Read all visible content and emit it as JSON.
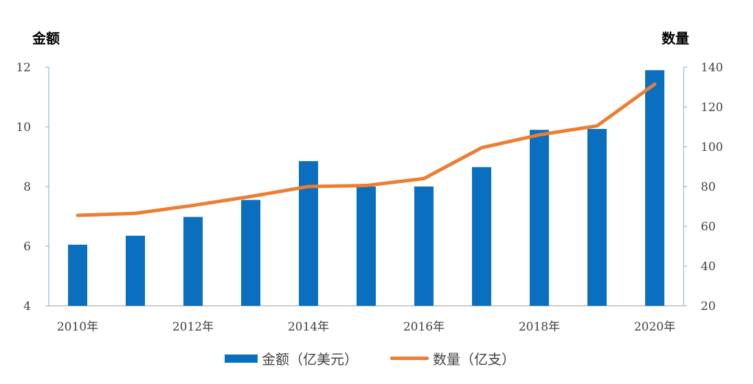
{
  "chart_data": {
    "type": "bar",
    "categories": [
      "2010",
      "2011",
      "2012",
      "2013",
      "2014",
      "2015",
      "2016",
      "2017",
      "2018",
      "2019",
      "2020"
    ],
    "x_tick_labels": [
      "2010年",
      "",
      "2012年",
      "",
      "2014年",
      "",
      "2016年",
      "",
      "2018年",
      "",
      "2020年"
    ],
    "series": [
      {
        "name": "金额（亿美元）",
        "type": "bar",
        "axis": "left",
        "color": "#0A6FBF",
        "values": [
          6.05,
          6.35,
          6.98,
          7.55,
          8.85,
          8.0,
          8.0,
          8.65,
          9.9,
          9.93,
          11.9
        ]
      },
      {
        "name": "数量（亿支）",
        "type": "line",
        "axis": "right",
        "color": "#ED7D31",
        "values": [
          65.5,
          66.5,
          70.5,
          75.0,
          80.0,
          80.5,
          84.0,
          99.5,
          106.0,
          110.5,
          131.5
        ]
      }
    ],
    "left_axis": {
      "label": "金额",
      "ylim": [
        4,
        12
      ],
      "ticks": [
        4,
        6,
        8,
        10,
        12
      ]
    },
    "right_axis": {
      "label": "数量",
      "ylim": [
        20,
        140
      ],
      "ticks": [
        20,
        40,
        60,
        80,
        100,
        120,
        140
      ]
    },
    "legend_position": "bottom",
    "grid": false
  }
}
